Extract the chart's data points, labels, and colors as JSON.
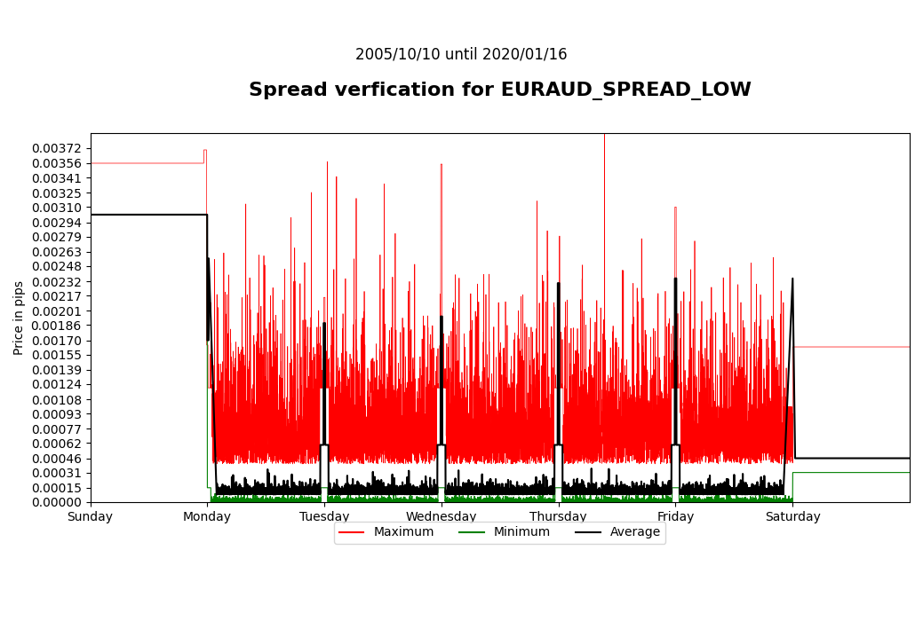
{
  "title": "Spread verfication for EURAUD_SPREAD_LOW",
  "subtitle": "2005/10/10 until 2020/01/16",
  "xlabel_days": [
    "Sunday",
    "Monday",
    "Tuesday",
    "Wednesday",
    "Thursday",
    "Friday",
    "Saturday"
  ],
  "ylabel": "Price in pips",
  "ylim": [
    0.0,
    0.00388
  ],
  "yticks": [
    0.0,
    0.00015,
    0.00031,
    0.00046,
    0.00062,
    0.00077,
    0.00093,
    0.00108,
    0.00124,
    0.00139,
    0.00155,
    0.0017,
    0.00186,
    0.00201,
    0.00217,
    0.00232,
    0.00248,
    0.00263,
    0.00279,
    0.00294,
    0.0031,
    0.00325,
    0.00341,
    0.00356,
    0.00372
  ],
  "color_max": "#ff0000",
  "color_min": "#008000",
  "color_avg": "#000000",
  "legend_labels": [
    "Maximum",
    "Minimum",
    "Average"
  ],
  "title_fontsize": 16,
  "subtitle_fontsize": 12,
  "tick_fontsize": 10,
  "n_points": 10080,
  "days": 6,
  "background_color": "#ffffff"
}
